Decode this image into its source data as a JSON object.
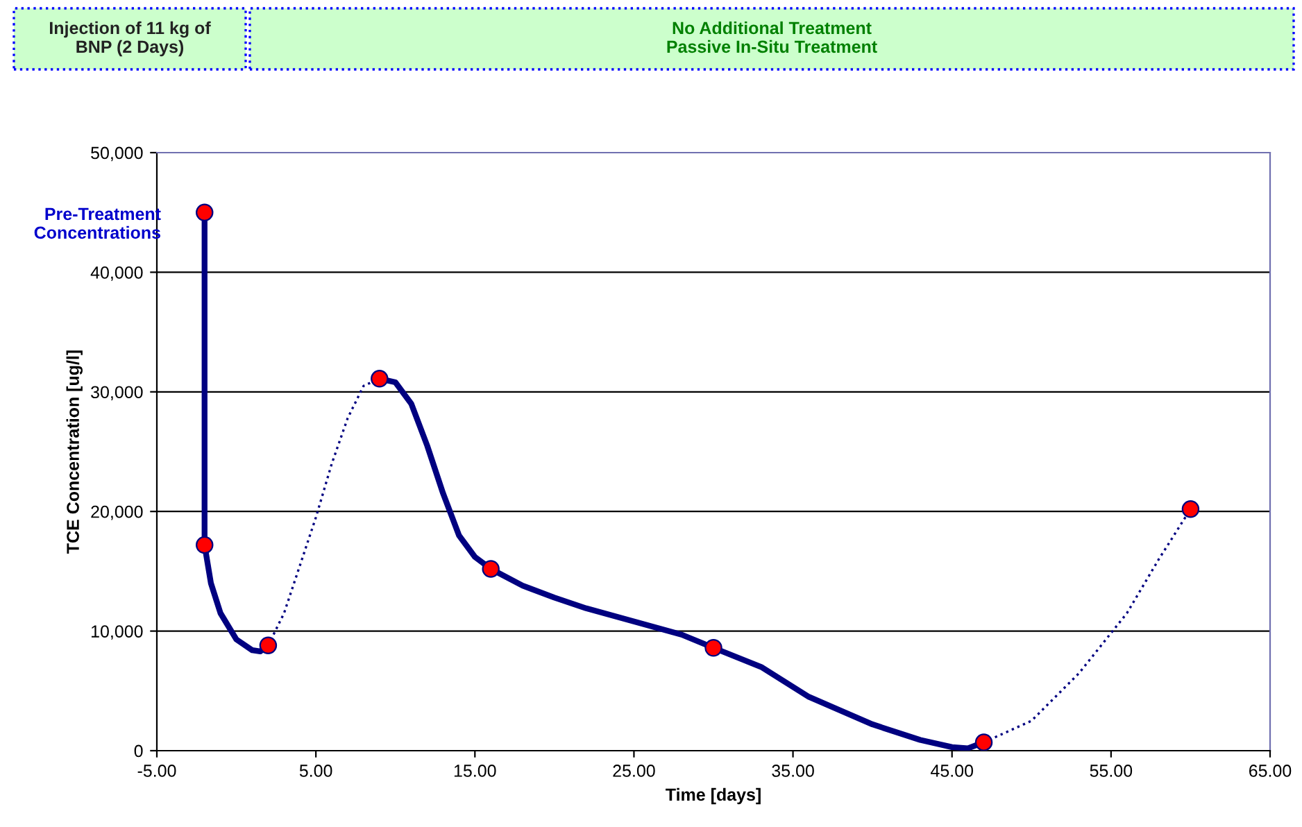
{
  "chart_data": {
    "type": "line",
    "xlabel": "Time [days]",
    "ylabel": "TCE Concentration [ug/l]",
    "xlim": [
      -5,
      65
    ],
    "xticks": [
      {
        "value": -5,
        "label": "-5.00"
      },
      {
        "value": 5,
        "label": "5.00"
      },
      {
        "value": 15,
        "label": "15.00"
      },
      {
        "value": 25,
        "label": "25.00"
      },
      {
        "value": 35,
        "label": "35.00"
      },
      {
        "value": 45,
        "label": "45.00"
      },
      {
        "value": 55,
        "label": "55.00"
      },
      {
        "value": 65,
        "label": "65.00"
      }
    ],
    "ylim": [
      0,
      50000
    ],
    "yticks": [
      {
        "value": 0,
        "label": "0"
      },
      {
        "value": 10000,
        "label": "10,000"
      },
      {
        "value": 20000,
        "label": "20,000"
      },
      {
        "value": 30000,
        "label": "30,000"
      },
      {
        "value": 40000,
        "label": "40,000"
      },
      {
        "value": 50000,
        "label": "50,000"
      }
    ],
    "grid": "y",
    "legend": false,
    "series": [
      {
        "type": "line",
        "color": "#000080",
        "line_style": "solid",
        "marker": "none",
        "x": [
          -2,
          -2,
          -1.6,
          -1,
          0,
          1,
          1.5,
          2
        ],
        "values": [
          45000,
          17200,
          14000,
          11500,
          9300,
          8400,
          8300,
          8800
        ]
      },
      {
        "type": "line",
        "color": "#000080",
        "line_style": "dotted",
        "marker": "none",
        "x": [
          2,
          3,
          4,
          5,
          6,
          7,
          8,
          9
        ],
        "values": [
          8800,
          11500,
          15500,
          19500,
          24000,
          27800,
          30500,
          31100
        ]
      },
      {
        "type": "line",
        "color": "#000080",
        "line_style": "solid",
        "marker": "none",
        "x": [
          9,
          10,
          11,
          12,
          13,
          14,
          15,
          16,
          18,
          20,
          22,
          25,
          28,
          30,
          33,
          36,
          40,
          43,
          45,
          46,
          47
        ],
        "values": [
          31100,
          30800,
          29000,
          25500,
          21500,
          18000,
          16200,
          15200,
          13800,
          12800,
          11900,
          10800,
          9700,
          8600,
          7000,
          4500,
          2200,
          900,
          300,
          200,
          700
        ]
      },
      {
        "type": "line",
        "color": "#000080",
        "line_style": "dotted",
        "marker": "none",
        "x": [
          47,
          50,
          53,
          56,
          58,
          60
        ],
        "values": [
          700,
          2500,
          6500,
          11500,
          16000,
          20200
        ]
      },
      {
        "type": "scatter",
        "color": "#ff0000",
        "marker": "circle",
        "x": [
          -2,
          -2,
          2,
          9,
          16,
          30,
          47,
          60
        ],
        "values": [
          45000,
          17200,
          8800,
          31100,
          15200,
          8600,
          700,
          20200
        ]
      }
    ],
    "annotations": [
      "Pre-Treatment\nConcentrations",
      "Injection of 11 kg of\nBNP (2 Days)",
      "No Additional Treatment\nPassive In-Situ Treatment"
    ]
  }
}
